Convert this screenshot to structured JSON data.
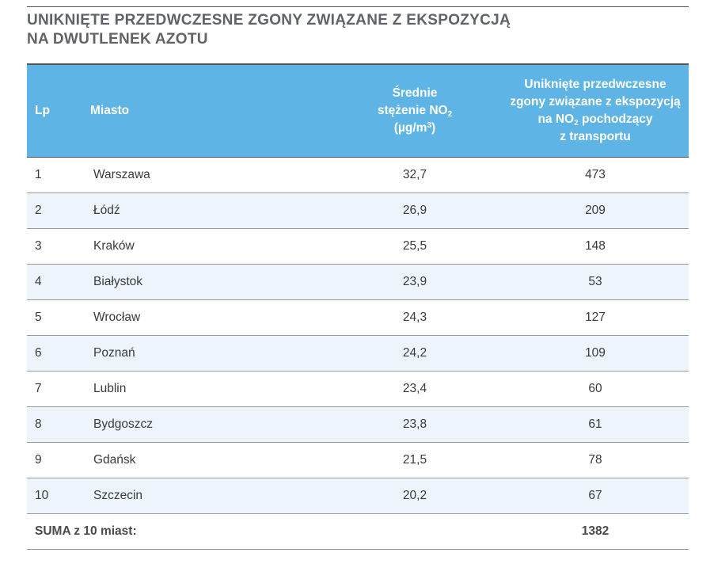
{
  "title": {
    "line1": "UNIKNIĘTE PRZEDWCZESNE ZGONY ZWIĄZANE Z EKSPOZYCJĄ",
    "line2": "NA DWUTLENEK AZOTU"
  },
  "table": {
    "header": {
      "lp": "Lp",
      "city": "Miasto",
      "no2_line1": "Średnie",
      "no2_line2_main": "stężenie NO",
      "no2_line2_sub": "2",
      "no2_line3_open": "(µg/m",
      "no2_line3_sup": "3",
      "no2_line3_close": ")",
      "deaths_line1": "Uniknięte przedwczesne",
      "deaths_line2": "zgony związane z ekspozycją",
      "deaths_line3_main": "na NO",
      "deaths_line3_sub": "2",
      "deaths_line3_rest": " pochodzący",
      "deaths_line4": "z transportu"
    },
    "rows": [
      {
        "lp": "1",
        "city": "Warszawa",
        "no2": "32,7",
        "deaths": "473"
      },
      {
        "lp": "2",
        "city": "Łódź",
        "no2": "26,9",
        "deaths": "209"
      },
      {
        "lp": "3",
        "city": "Kraków",
        "no2": "25,5",
        "deaths": "148"
      },
      {
        "lp": "4",
        "city": "Białystok",
        "no2": "23,9",
        "deaths": "53"
      },
      {
        "lp": "5",
        "city": "Wrocław",
        "no2": "24,3",
        "deaths": "127"
      },
      {
        "lp": "6",
        "city": "Poznań",
        "no2": "24,2",
        "deaths": "109"
      },
      {
        "lp": "7",
        "city": "Lublin",
        "no2": "23,4",
        "deaths": "60"
      },
      {
        "lp": "8",
        "city": "Bydgoszcz",
        "no2": "23,8",
        "deaths": "61"
      },
      {
        "lp": "9",
        "city": "Gdańsk",
        "no2": "21,5",
        "deaths": "78"
      },
      {
        "lp": "10",
        "city": "Szczecin",
        "no2": "20,2",
        "deaths": "67"
      }
    ],
    "summary": {
      "label": "SUMA z 10 miast:",
      "deaths": "1382"
    }
  },
  "colors": {
    "header_bg": "#5eb4e4",
    "zebra_bg": "#edf4fb",
    "title_text": "#5f6368"
  }
}
